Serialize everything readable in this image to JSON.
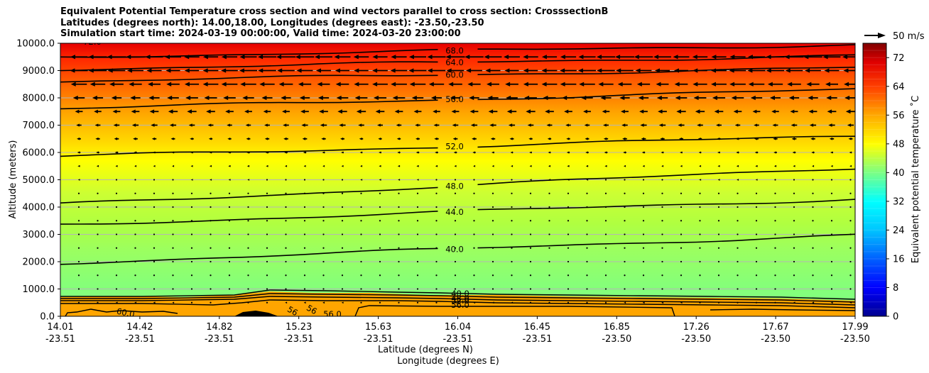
{
  "chart_data": {
    "type": "contourf",
    "title_lines": [
      "Equivalent Potential Temperature cross section and wind vectors parallel to cross section: CrosssectionB",
      "Latitudes (degrees north): 14.00,18.00, Longitudes (degrees east): -23.50,-23.50",
      "Simulation start time: 2024-03-19 00:00:00, Valid time: 2024-03-20 23:00:00"
    ],
    "ylabel": "Altitude (meters)",
    "xlabel_lat": "Latitude (degrees N)",
    "xlabel_lon": "Longitude (degrees E)",
    "ylim": [
      0,
      10000
    ],
    "yticks": [
      "0.0",
      "1000.0",
      "2000.0",
      "3000.0",
      "4000.0",
      "5000.0",
      "6000.0",
      "7000.0",
      "8000.0",
      "9000.0",
      "10000.0"
    ],
    "xticks_lat": [
      "14.01",
      "14.42",
      "14.82",
      "15.23",
      "15.63",
      "16.04",
      "16.45",
      "16.85",
      "17.26",
      "17.67",
      "17.99"
    ],
    "xticks_lon": [
      "-23.51",
      "-23.51",
      "-23.51",
      "-23.51",
      "-23.51",
      "-23.51",
      "-23.51",
      "-23.50",
      "-23.50",
      "-23.50",
      "-23.50"
    ],
    "colorbar": {
      "label": "Equivalent potential temperature ˚C",
      "range": [
        0,
        76
      ],
      "ticks": [
        0,
        8,
        16,
        24,
        32,
        40,
        48,
        56,
        64,
        72
      ],
      "colormap": [
        "#00008f",
        "#0000ff",
        "#0080ff",
        "#00ffff",
        "#80ff80",
        "#ffff00",
        "#ff8000",
        "#ff0000",
        "#800000"
      ]
    },
    "contour_lines": [
      {
        "level": 68,
        "label": "68.0",
        "altitude_start": 9500,
        "altitude_end": 9950
      },
      {
        "level": 64,
        "label": "64.0",
        "altitude_start": 9050,
        "altitude_end": 9550
      },
      {
        "level": 60,
        "label": "60.0",
        "altitude_start": 8600,
        "altitude_end": 9100
      },
      {
        "level": 56,
        "label": "56.0",
        "altitude_start": 7600,
        "altitude_end": 8300
      },
      {
        "level": 52,
        "label": "52.0",
        "altitude_start": 5850,
        "altitude_end": 6600
      },
      {
        "level": 48,
        "label": "48.0",
        "altitude_start": 4100,
        "altitude_end": 5450
      },
      {
        "level": 44,
        "label": "44.0",
        "altitude_start": 3350,
        "altitude_end": 4300
      },
      {
        "level": 40,
        "label": "40.0",
        "altitude_start": 1950,
        "altitude_end": 2980
      }
    ],
    "low_level_labels": [
      "40.0",
      "48.0",
      "52.0",
      "56.0",
      "60.0",
      "56",
      "56",
      "56.0",
      "72.0"
    ],
    "wind_reference": {
      "label": "50 m/s",
      "speed": 50
    },
    "wind_rows_altitude": [
      9500,
      9000,
      8500,
      8000,
      7500,
      7000,
      6500,
      6000,
      5500,
      5000,
      4500,
      4000,
      3500,
      3000,
      2500,
      2000,
      1500,
      1000,
      500
    ],
    "wind_row_speed_ms": [
      40,
      38,
      34,
      27,
      20,
      14,
      10,
      7,
      5,
      4,
      3,
      3,
      2,
      2,
      2,
      2,
      2,
      3,
      4
    ]
  }
}
